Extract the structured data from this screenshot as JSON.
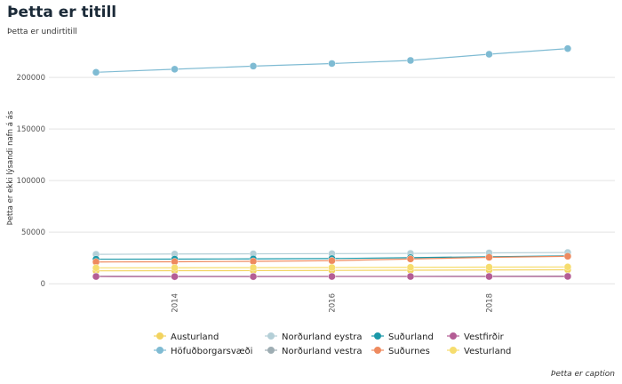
{
  "title": "Þetta er titill",
  "subtitle": "Þetta er undirtitill",
  "caption": "Þetta er caption",
  "chart_data": {
    "type": "line",
    "title": "Þetta er titill",
    "subtitle": "Þetta er undirtitill",
    "xlabel": "",
    "ylabel": "Þetta er ekki lýsandi nafn á ás",
    "x": [
      2013,
      2014,
      2015,
      2016,
      2017,
      2018,
      2019
    ],
    "xlim": [
      2012.4,
      2019.6
    ],
    "ylim": [
      -5000,
      232000
    ],
    "yticks": [
      0,
      50000,
      100000,
      150000,
      200000
    ],
    "xticks": [
      2014,
      2016,
      2018
    ],
    "grid": true,
    "legend_position": "bottom",
    "series": [
      {
        "name": "Austurland",
        "color": "#f2d35f",
        "values": [
          12500,
          12600,
          12700,
          12900,
          13100,
          13300,
          13500
        ]
      },
      {
        "name": "Höfuðborgarsvæði",
        "color": "#7fbbd3",
        "values": [
          205000,
          208000,
          211000,
          213500,
          216500,
          222500,
          228000
        ]
      },
      {
        "name": "Norðurland eystra",
        "color": "#b4cfd7",
        "values": [
          28500,
          28800,
          29000,
          29200,
          29400,
          29900,
          30300
        ]
      },
      {
        "name": "Norðurland vestra",
        "color": "#9eadb3",
        "values": [
          7300,
          7200,
          7200,
          7200,
          7200,
          7300,
          7400
        ]
      },
      {
        "name": "Suðurland",
        "color": "#1a98a8",
        "values": [
          23800,
          23900,
          24100,
          24400,
          25300,
          26200,
          27100
        ]
      },
      {
        "name": "Suðurnes",
        "color": "#ee8a5f",
        "values": [
          21100,
          21300,
          21700,
          22300,
          24000,
          25600,
          26600
        ]
      },
      {
        "name": "Vestfirðir",
        "color": "#b45d95",
        "values": [
          7000,
          6900,
          6900,
          7000,
          7000,
          7000,
          7100
        ]
      },
      {
        "name": "Vesturland",
        "color": "#f6dd6e",
        "values": [
          15400,
          15500,
          15600,
          15700,
          15900,
          16100,
          16300
        ]
      }
    ]
  }
}
